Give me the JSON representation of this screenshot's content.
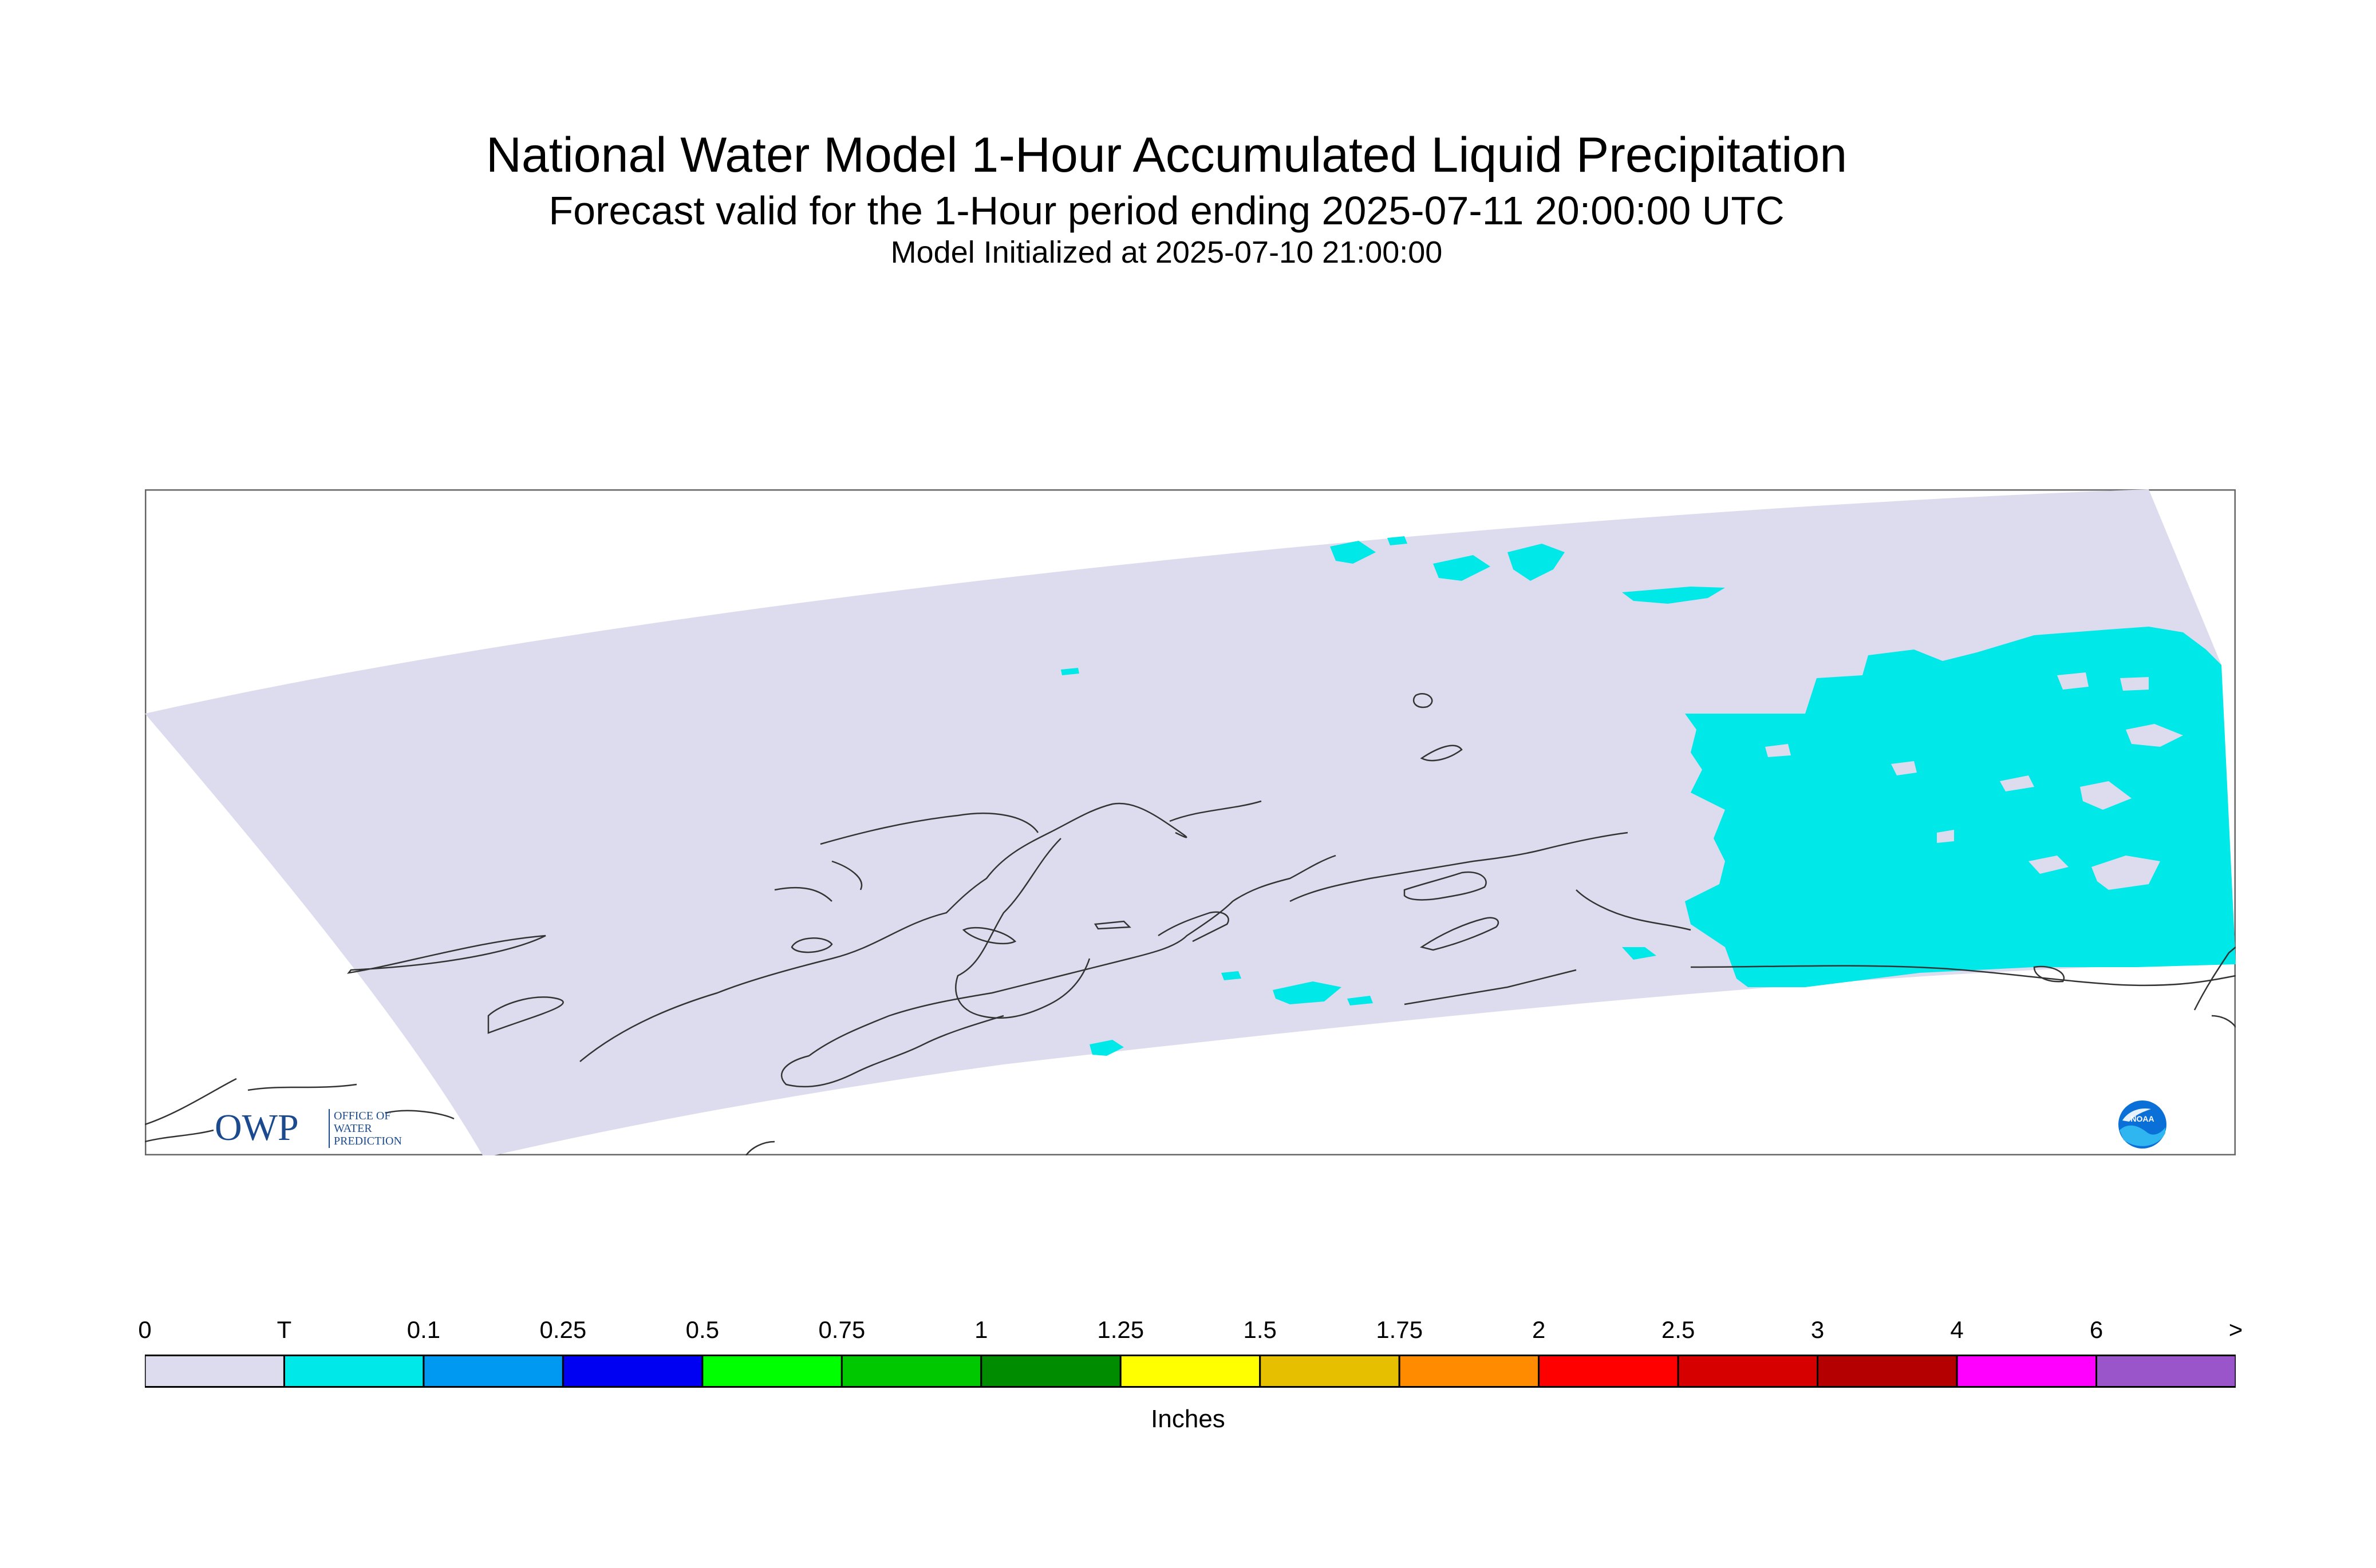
{
  "header": {
    "title": "National Water Model 1-Hour Accumulated Liquid Precipitation",
    "subtitle": "Forecast valid for the 1-Hour period ending 2025-07-11 20:00:00 UTC",
    "init": "Model Initialized at 2025-07-10 21:00:00"
  },
  "legend": {
    "units": "Inches",
    "ticks": [
      "0",
      "T",
      "0.1",
      "0.25",
      "0.5",
      "0.75",
      "1",
      "1.25",
      "1.5",
      "1.75",
      "2",
      "2.5",
      "3",
      "4",
      "6",
      ">"
    ],
    "colors": [
      "#dcdcee",
      "#00e8e8",
      "#0099f2",
      "#0000f2",
      "#00ff00",
      "#00c800",
      "#008c00",
      "#ffff00",
      "#e6bf00",
      "#ff8c00",
      "#ff0000",
      "#d60000",
      "#b40000",
      "#ff00ff",
      "#9955c9"
    ]
  },
  "map": {
    "domain_color": "#dcdcee",
    "precip_color": "#00e8e8",
    "coast_color": "#333333"
  },
  "logos": {
    "owp_text": "OWP",
    "owp_sub": [
      "OFFICE OF",
      "WATER",
      "PREDICTION"
    ],
    "noaa_text": "NOAA"
  }
}
